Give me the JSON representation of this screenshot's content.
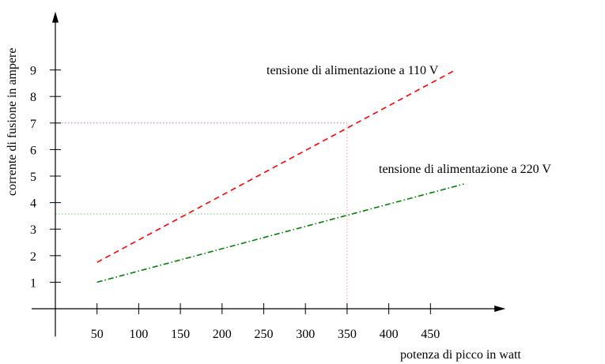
{
  "chart_data": {
    "type": "line",
    "xlabel": "potenza di picco in watt",
    "ylabel": "corrente di fusione in ampere",
    "x_ticks": [
      50,
      100,
      150,
      200,
      250,
      300,
      350,
      400,
      450
    ],
    "y_ticks": [
      1,
      2,
      3,
      4,
      5,
      6,
      7,
      8,
      9
    ],
    "xlim": [
      0,
      540
    ],
    "ylim": [
      -1.05,
      11.2
    ],
    "grid": false,
    "series": [
      {
        "name": "tensione di alimentazione a 110 V",
        "color": "#ff0000",
        "dash": "dashed",
        "x": [
          50,
          480
        ],
        "y": [
          1.75,
          9.0
        ]
      },
      {
        "name": "tensione di alimentazione a 220 V",
        "color": "#008000",
        "dash": "dash-dot",
        "x": [
          50,
          490
        ],
        "y": [
          1.0,
          4.7
        ]
      }
    ],
    "reference_lines": [
      {
        "kind": "horizontal",
        "y": 7.0,
        "x_to": 350,
        "color": "#cc66cc"
      },
      {
        "kind": "horizontal",
        "y": 3.57,
        "x_to": 350,
        "color": "#66cc66"
      },
      {
        "kind": "vertical",
        "x": 350,
        "y_from": 0,
        "y_to": 7.0,
        "color": "#ff88aa"
      }
    ]
  }
}
